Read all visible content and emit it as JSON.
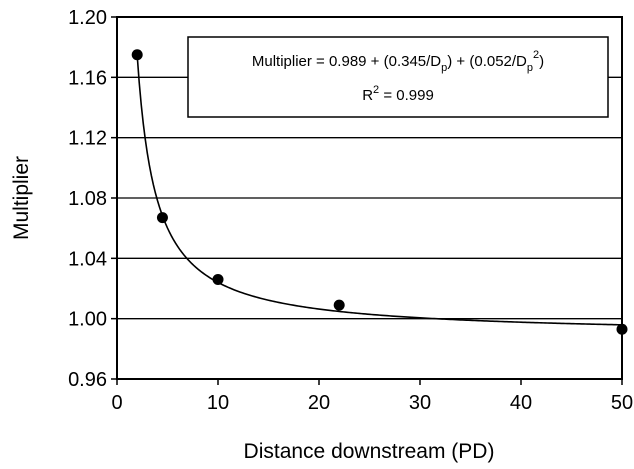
{
  "chart_data": {
    "type": "scatter",
    "xlabel": "Distance downstream (PD)",
    "ylabel": "Multiplier",
    "xlim": [
      0,
      50
    ],
    "ylim": [
      0.96,
      1.2
    ],
    "x_ticks": [
      "0",
      "10",
      "20",
      "30",
      "40",
      "50"
    ],
    "y_ticks": [
      "0.96",
      "1.00",
      "1.04",
      "1.08",
      "1.12",
      "1.16",
      "1.20"
    ],
    "grid": "horizontal",
    "series": [
      {
        "points": [
          {
            "x": 2,
            "y": 1.175
          },
          {
            "x": 4.5,
            "y": 1.067
          },
          {
            "x": 10,
            "y": 1.026
          },
          {
            "x": 22,
            "y": 1.009
          },
          {
            "x": 50,
            "y": 0.993
          }
        ]
      }
    ],
    "fit": {
      "a": 0.989,
      "b": 0.345,
      "c": 0.052,
      "x_from": 2,
      "x_to": 50
    },
    "annotation": {
      "eq_prefix": "Multiplier = 0.989 + (0.345/D",
      "eq_sub1": "p",
      "eq_mid": ") + (0.052/D",
      "eq_sub2": "p",
      "eq_sup": "2",
      "eq_suffix": ")",
      "r2_label": "R",
      "r2_sup": "2",
      "r2_value": " = 0.999"
    }
  }
}
